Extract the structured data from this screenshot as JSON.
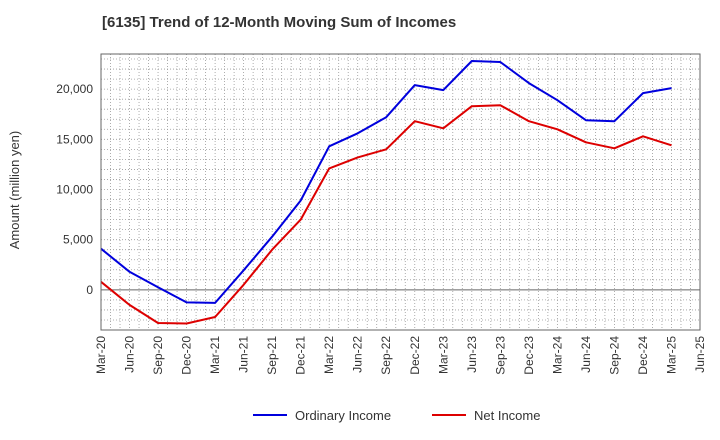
{
  "chart_data": {
    "type": "line",
    "title": "[6135]  Trend of 12-Month Moving Sum of Incomes",
    "xlabel": "",
    "ylabel": "Amount (million yen)",
    "ylim": [
      -4000,
      23500
    ],
    "yticks": [
      0,
      5000,
      10000,
      15000,
      20000
    ],
    "ytick_labels": [
      "0",
      "5,000",
      "10,000",
      "15,000",
      "20,000"
    ],
    "grid": true,
    "legend_position": "bottom-center",
    "categories": [
      "Mar-20",
      "Jun-20",
      "Sep-20",
      "Dec-20",
      "Mar-21",
      "Jun-21",
      "Sep-21",
      "Dec-21",
      "Mar-22",
      "Jun-22",
      "Sep-22",
      "Dec-22",
      "Mar-23",
      "Jun-23",
      "Sep-23",
      "Dec-23",
      "Mar-24",
      "Jun-24",
      "Sep-24",
      "Dec-24",
      "Mar-25",
      "Jun-25"
    ],
    "series": [
      {
        "name": "Ordinary Income",
        "color": "#0000dd",
        "values": [
          4100,
          1800,
          250,
          -1250,
          -1300,
          1950,
          5300,
          8900,
          14300,
          15600,
          17200,
          20400,
          19900,
          22800,
          22700,
          20600,
          18900,
          16900,
          16800,
          19600,
          20100,
          null
        ]
      },
      {
        "name": "Net Income",
        "color": "#dd0000",
        "values": [
          800,
          -1500,
          -3300,
          -3350,
          -2700,
          500,
          4000,
          7000,
          12100,
          13200,
          14000,
          16800,
          16100,
          18300,
          18400,
          16800,
          16000,
          14700,
          14100,
          15300,
          14400,
          null
        ]
      }
    ]
  }
}
